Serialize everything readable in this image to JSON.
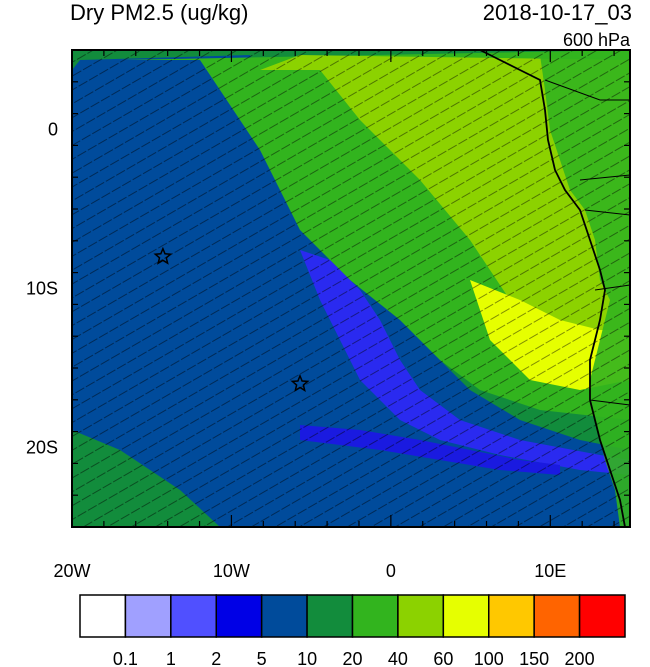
{
  "header": {
    "title": "Dry PM2.5 (ug/kg)",
    "datetime": "2018-10-17_03",
    "level": "600 hPa"
  },
  "map": {
    "lon_labels": [
      "20W",
      "10W",
      "0",
      "10E"
    ],
    "lat_labels": [
      "0",
      "10S",
      "20S"
    ],
    "lon_range": [
      -20,
      15
    ],
    "lat_range": [
      -25,
      5
    ],
    "lon_ticks": [
      -20,
      -10,
      0,
      10
    ],
    "lat_ticks": [
      0,
      -10,
      -20
    ],
    "station_markers": [
      {
        "name": "star-marker-1",
        "lon": -14.3,
        "lat": -8.0
      },
      {
        "name": "star-marker-2",
        "lon": -5.7,
        "lat": -16.0
      }
    ]
  },
  "colorbar": {
    "levels": [
      "0.1",
      "1",
      "2",
      "5",
      "10",
      "20",
      "40",
      "60",
      "100",
      "150",
      "200"
    ],
    "colors": [
      "#ffffff",
      "#a0a0ff",
      "#5050ff",
      "#0000e6",
      "#004b9b",
      "#128c3c",
      "#32b41e",
      "#8cd200",
      "#e6ff00",
      "#ffc800",
      "#ff6400",
      "#ff0000"
    ]
  }
}
